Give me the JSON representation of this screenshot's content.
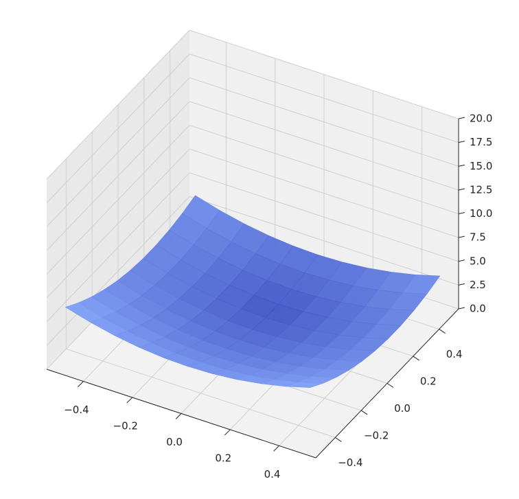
{
  "chart_data": {
    "type": "surface",
    "color": "#4a6ee0",
    "x": [
      -0.5,
      -0.4,
      -0.3,
      -0.2,
      -0.1,
      0,
      0.1,
      0.2,
      0.3,
      0.4,
      0.5
    ],
    "y": [
      -0.5,
      -0.4,
      -0.3,
      -0.2,
      -0.1,
      0,
      0.1,
      0.2,
      0.3,
      0.4,
      0.5
    ],
    "z": [
      [
        6.25,
        5.53,
        4.97,
        4.57,
        4.33,
        4.25,
        4.33,
        4.57,
        4.97,
        5.53,
        6.25
      ],
      [
        5.28,
        4.56,
        4,
        3.6,
        3.36,
        3.28,
        3.36,
        3.6,
        4,
        4.56,
        5.28
      ],
      [
        4.47,
        3.75,
        3.19,
        2.79,
        2.55,
        2.47,
        2.55,
        2.79,
        3.19,
        3.75,
        4.47
      ],
      [
        3.82,
        3.1,
        2.54,
        2.14,
        1.9,
        1.82,
        1.9,
        2.14,
        2.54,
        3.1,
        3.82
      ],
      [
        3.33,
        2.61,
        2.05,
        1.65,
        1.41,
        1.33,
        1.41,
        1.65,
        2.05,
        2.61,
        3.33
      ],
      [
        3,
        2.28,
        1.72,
        1.32,
        1.08,
        1,
        1.08,
        1.32,
        1.72,
        2.28,
        3
      ],
      [
        2.83,
        2.11,
        1.55,
        1.15,
        0.91,
        0.83,
        0.91,
        1.15,
        1.55,
        2.11,
        2.83
      ],
      [
        2.82,
        2.1,
        1.54,
        1.14,
        0.9,
        0.82,
        0.9,
        1.14,
        1.54,
        2.1,
        2.82
      ],
      [
        2.97,
        2.25,
        1.69,
        1.29,
        1.05,
        0.97,
        1.05,
        1.29,
        1.69,
        2.25,
        2.97
      ],
      [
        3.28,
        2.56,
        2,
        1.6,
        1.36,
        1.28,
        1.36,
        1.6,
        2,
        2.56,
        3.28
      ],
      [
        3.75,
        3.03,
        2.47,
        2.07,
        1.83,
        1.75,
        1.83,
        2.07,
        2.47,
        3.03,
        3.75
      ]
    ],
    "xlim": [
      -0.55,
      0.55
    ],
    "ylim": [
      -0.55,
      0.55
    ],
    "zlim": [
      0,
      20
    ],
    "xticks": [
      {
        "value": -0.4,
        "label": "−0.4"
      },
      {
        "value": -0.2,
        "label": "−0.2"
      },
      {
        "value": 0,
        "label": "0.0"
      },
      0.2,
      0.4
    ],
    "yticks": [
      {
        "value": -0.4,
        "label": "−0.4"
      },
      {
        "value": -0.2,
        "label": "−0.2"
      },
      {
        "value": 0,
        "label": "0.0"
      },
      0.2,
      0.4
    ],
    "zticks": [
      {
        "value": 0,
        "label": "0.0"
      },
      2.5,
      {
        "value": 5,
        "label": "5.0"
      },
      7.5,
      {
        "value": 10,
        "label": "10.0"
      },
      12.5,
      {
        "value": 15,
        "label": "15.0"
      },
      17.5,
      {
        "value": 20,
        "label": "20.0"
      }
    ],
    "grid": true
  }
}
